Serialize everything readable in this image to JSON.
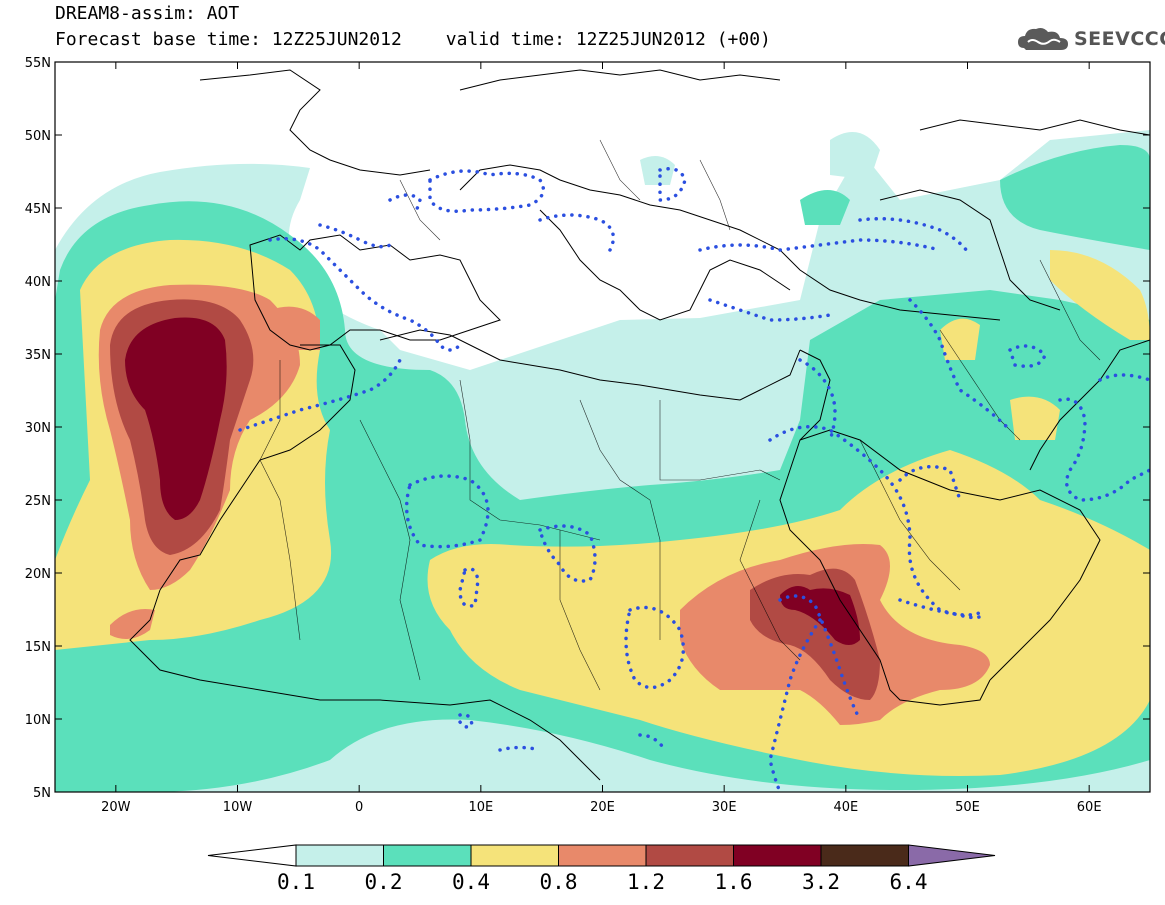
{
  "header": {
    "title": "DREAM8-assim: AOT",
    "base_time": "Forecast base time: 12Z25JUN2012",
    "valid_time": "valid time: 12Z25JUN2012 (+00)"
  },
  "logo": {
    "text": "SEEVCCC",
    "icon": "cloud-icon"
  },
  "map": {
    "lon_range": [
      -25,
      65
    ],
    "lat_range": [
      5,
      55
    ],
    "lat_ticks": [
      "5N",
      "10N",
      "15N",
      "20N",
      "25N",
      "30N",
      "35N",
      "40N",
      "45N",
      "50N",
      "55N"
    ],
    "lon_ticks": [
      "20W",
      "10W",
      "0",
      "10E",
      "20E",
      "30E",
      "40E",
      "50E",
      "60E"
    ],
    "contour_color": "#2b4fe0"
  },
  "colorbar": {
    "levels": [
      "0.1",
      "0.2",
      "0.4",
      "0.8",
      "1.2",
      "1.6",
      "3.2",
      "6.4"
    ],
    "colors": [
      "#ffffff",
      "#c5f0ea",
      "#5be0bb",
      "#f5e37a",
      "#e8896a",
      "#b14a44",
      "#800023",
      "#4a2a1a",
      "#8a6aa8"
    ]
  }
}
